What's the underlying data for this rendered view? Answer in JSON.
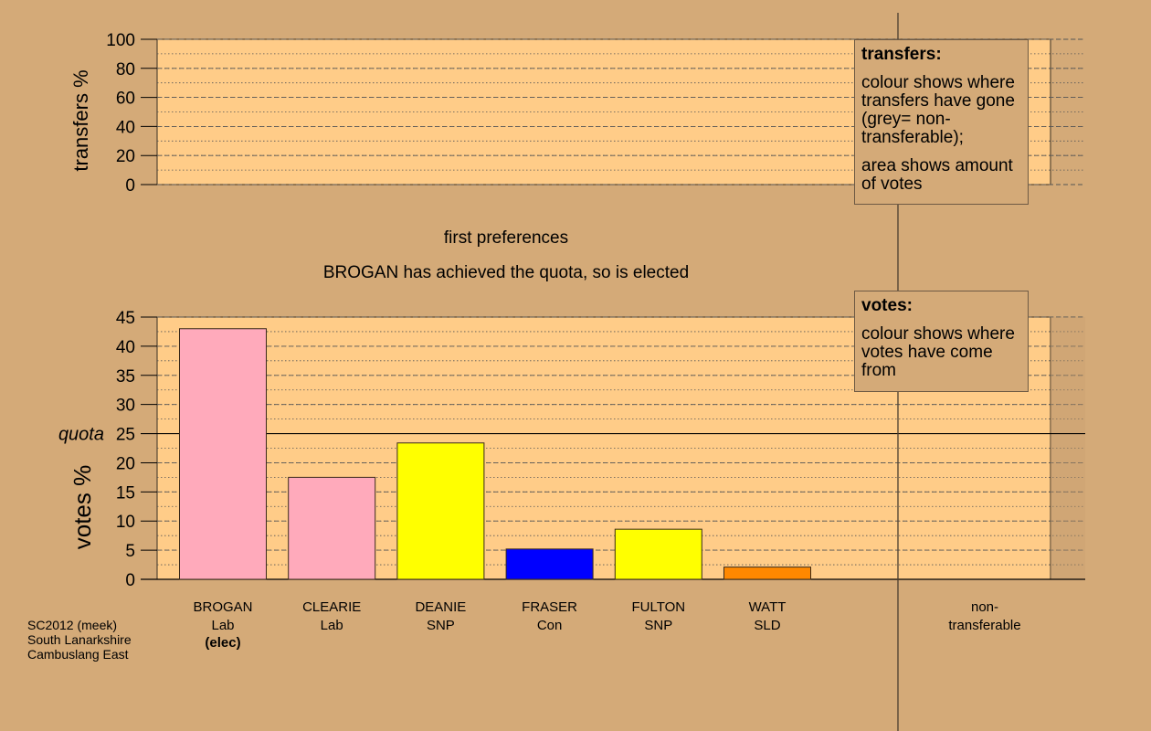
{
  "page": {
    "background": "#d4aa78",
    "panel_fill": "#ffcc88",
    "grid_color": "#555555"
  },
  "stage_title": "first preferences",
  "status_text": "BROGAN has achieved the quota, so is elected",
  "chart_data": [
    {
      "id": "transfers",
      "type": "bar",
      "ylabel": "transfers %",
      "ylim": [
        0,
        100
      ],
      "yticks": [
        0,
        20,
        40,
        60,
        80,
        100
      ],
      "grid": true,
      "series": []
    },
    {
      "id": "votes",
      "type": "bar",
      "ylabel": "votes %",
      "ylim": [
        0,
        45
      ],
      "yticks": [
        0,
        5,
        10,
        15,
        20,
        25,
        30,
        35,
        40,
        45
      ],
      "grid": true,
      "quota": {
        "label": "quota",
        "value": 25
      },
      "categories": [
        {
          "name": "BROGAN",
          "party": "Lab",
          "note": "(elec)",
          "value": 43.0,
          "color": "#ffaabb"
        },
        {
          "name": "CLEARIE",
          "party": "Lab",
          "note": "",
          "value": 17.5,
          "color": "#ffaabb"
        },
        {
          "name": "DEANIE",
          "party": "SNP",
          "note": "",
          "value": 23.4,
          "color": "#ffff00"
        },
        {
          "name": "FRASER",
          "party": "Con",
          "note": "",
          "value": 5.2,
          "color": "#0000ff"
        },
        {
          "name": "FULTON",
          "party": "SNP",
          "note": "",
          "value": 8.6,
          "color": "#ffff00"
        },
        {
          "name": "WATT",
          "party": "SLD",
          "note": "",
          "value": 2.1,
          "color": "#ff8800"
        }
      ],
      "nontransferable": {
        "label_lines": [
          "non-",
          "transferable"
        ],
        "value": 0
      }
    }
  ],
  "legends": {
    "transfers": {
      "title": "transfers:",
      "para1": "colour shows where transfers have gone (grey= non-transferable);",
      "para2": "area shows amount of votes"
    },
    "votes": {
      "title": "votes:",
      "para1": "colour shows where votes have come from"
    }
  },
  "caption": {
    "line1": "SC2012 (meek)",
    "line2": "South Lanarkshire",
    "line3": "Cambuslang East"
  }
}
